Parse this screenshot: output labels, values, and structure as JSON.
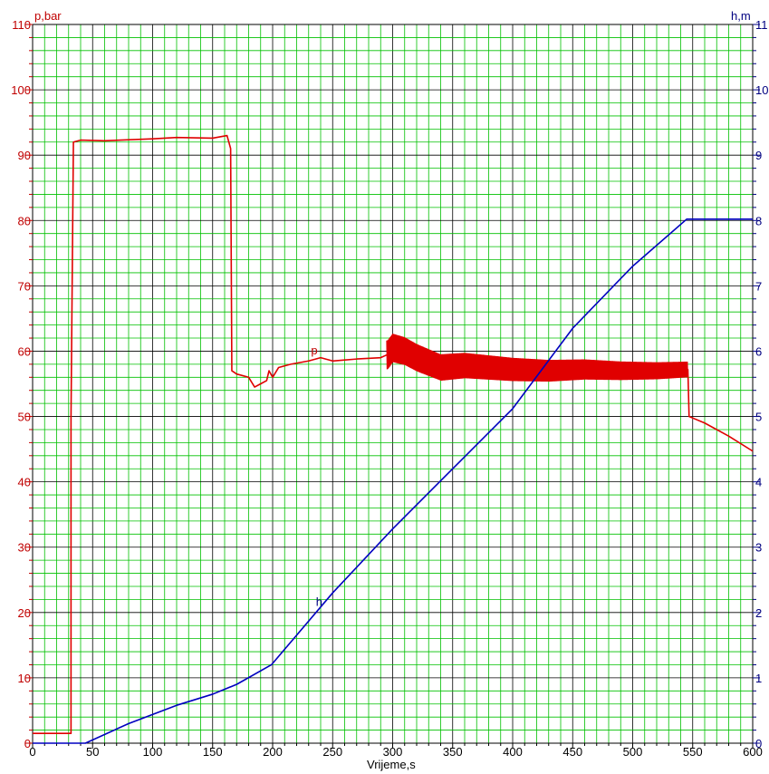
{
  "chart_data": {
    "type": "line",
    "xlabel": "Vrijeme,s",
    "ylabel_left": "p,bar",
    "ylabel_right": "h,m",
    "xlim": [
      0,
      600
    ],
    "ylim_left": [
      0,
      110
    ],
    "ylim_right": [
      0,
      11
    ],
    "x_ticks": [
      "0",
      "50",
      "100",
      "150",
      "200",
      "250",
      "300",
      "350",
      "400",
      "450",
      "500",
      "550",
      "600"
    ],
    "y_left_ticks": [
      "0",
      "10",
      "20",
      "30",
      "40",
      "50",
      "60",
      "70",
      "80",
      "90",
      "100",
      "110"
    ],
    "y_right_ticks": [
      "0",
      "1",
      "2",
      "3",
      "4",
      "5",
      "6",
      "7",
      "8",
      "9",
      "10",
      "11"
    ],
    "grid": true,
    "grid_color": "#00c000",
    "series": [
      {
        "name": "p",
        "axis": "left",
        "color": "#e00000",
        "label_point": [
          232,
          59.5
        ],
        "points": [
          [
            0,
            1.5
          ],
          [
            32,
            1.5
          ],
          [
            32,
            50
          ],
          [
            34,
            92
          ],
          [
            40,
            92.3
          ],
          [
            60,
            92.2
          ],
          [
            100,
            92.5
          ],
          [
            120,
            92.7
          ],
          [
            150,
            92.6
          ],
          [
            162,
            93
          ],
          [
            165,
            91
          ],
          [
            166,
            57
          ],
          [
            170,
            56.5
          ],
          [
            180,
            56
          ],
          [
            185,
            54.5
          ],
          [
            190,
            55
          ],
          [
            195,
            55.5
          ],
          [
            197,
            57
          ],
          [
            200,
            56
          ],
          [
            205,
            57.5
          ],
          [
            215,
            58
          ],
          [
            230,
            58.5
          ],
          [
            240,
            59
          ],
          [
            250,
            58.5
          ],
          [
            270,
            58.8
          ],
          [
            290,
            59
          ],
          [
            296,
            59.5
          ],
          [
            300,
            60.5
          ],
          [
            310,
            60
          ],
          [
            320,
            59
          ],
          [
            340,
            57.5
          ],
          [
            360,
            57.8
          ],
          [
            380,
            57.5
          ],
          [
            400,
            57.2
          ],
          [
            430,
            57
          ],
          [
            460,
            57.2
          ],
          [
            490,
            57
          ],
          [
            520,
            57
          ],
          [
            546,
            57.2
          ],
          [
            547,
            50
          ],
          [
            560,
            49
          ],
          [
            580,
            47
          ],
          [
            600,
            44.7
          ]
        ],
        "noise": [
          {
            "from": 295,
            "to": 546,
            "amplitude_start": 2.2,
            "amplitude_end": 1.2
          }
        ]
      },
      {
        "name": "h",
        "axis": "right",
        "color": "#0000c0",
        "label_point": [
          236,
          2.1
        ],
        "points": [
          [
            0,
            0
          ],
          [
            44,
            0
          ],
          [
            80,
            0.3
          ],
          [
            120,
            0.58
          ],
          [
            150,
            0.75
          ],
          [
            170,
            0.9
          ],
          [
            199,
            1.2
          ],
          [
            250,
            2.3
          ],
          [
            300,
            3.28
          ],
          [
            350,
            4.2
          ],
          [
            400,
            5.12
          ],
          [
            450,
            6.35
          ],
          [
            500,
            7.3
          ],
          [
            545,
            8.02
          ],
          [
            600,
            8.02
          ]
        ]
      }
    ]
  }
}
